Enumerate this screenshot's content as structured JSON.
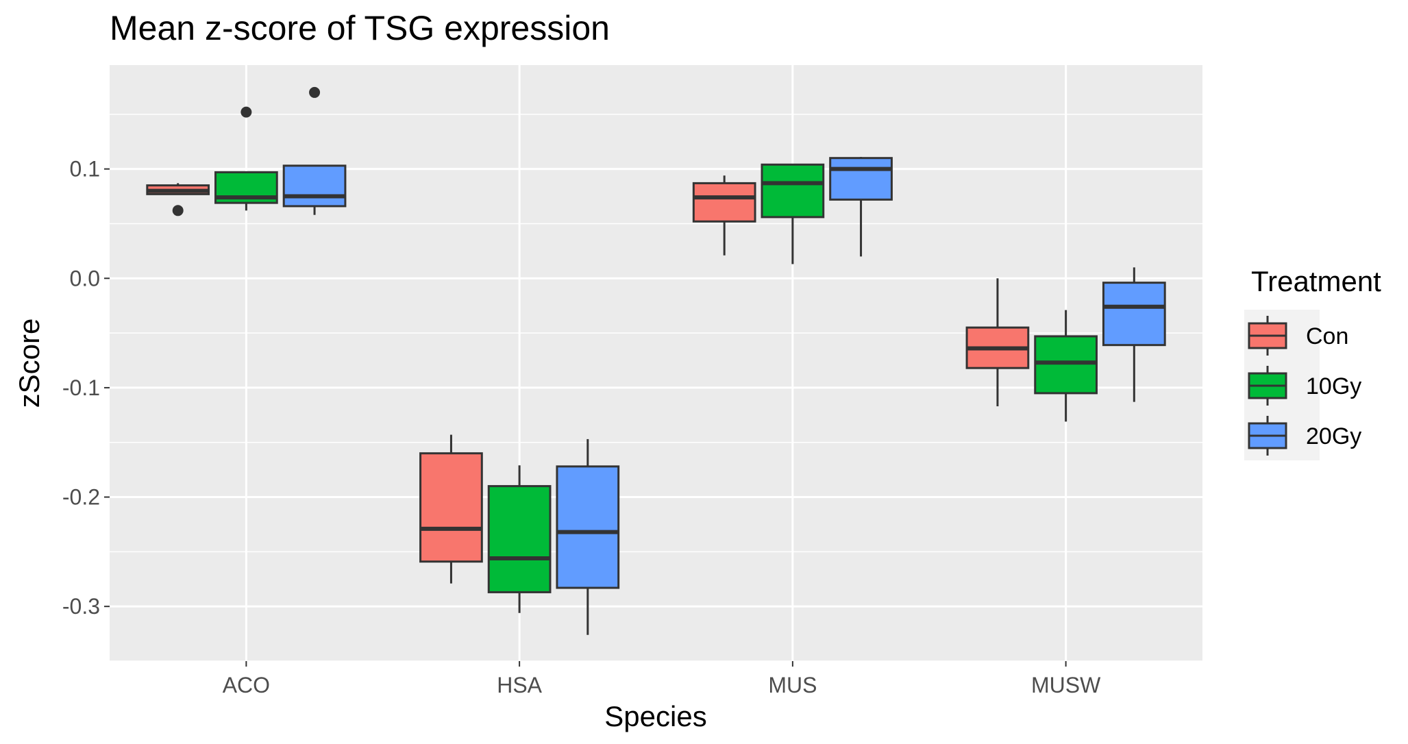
{
  "chart_data": {
    "type": "box",
    "title": "Mean z-score of TSG expression",
    "xlabel": "Species",
    "ylabel": "zScore",
    "categories": [
      "ACO",
      "HSA",
      "MUS",
      "MUSW"
    ],
    "ylim": [
      -0.35,
      0.195
    ],
    "yticks": [
      0.1,
      0.0,
      -0.1,
      -0.2,
      -0.3
    ],
    "ytick_labels": [
      "0.1",
      "0.0",
      "-0.1",
      "-0.2",
      "-0.3"
    ],
    "grid": true,
    "legend": {
      "title": "Treatment",
      "placement": "right",
      "items": [
        "Con",
        "10Gy",
        "20Gy"
      ]
    },
    "series": [
      {
        "name": "Con",
        "color": "#F8766D",
        "boxes": [
          {
            "category": "ACO",
            "lower_whisker": 0.077,
            "q1": 0.077,
            "median": 0.08,
            "q3": 0.085,
            "upper_whisker": 0.087,
            "outliers": [
              0.062
            ]
          },
          {
            "category": "HSA",
            "lower_whisker": -0.279,
            "q1": -0.259,
            "median": -0.229,
            "q3": -0.16,
            "upper_whisker": -0.143,
            "outliers": []
          },
          {
            "category": "MUS",
            "lower_whisker": 0.021,
            "q1": 0.052,
            "median": 0.074,
            "q3": 0.087,
            "upper_whisker": 0.094,
            "outliers": []
          },
          {
            "category": "MUSW",
            "lower_whisker": -0.117,
            "q1": -0.082,
            "median": -0.064,
            "q3": -0.045,
            "upper_whisker": 0.0,
            "outliers": []
          }
        ]
      },
      {
        "name": "10Gy",
        "color": "#00BA38",
        "boxes": [
          {
            "category": "ACO",
            "lower_whisker": 0.062,
            "q1": 0.069,
            "median": 0.074,
            "q3": 0.097,
            "upper_whisker": 0.097,
            "outliers": [
              0.152
            ]
          },
          {
            "category": "HSA",
            "lower_whisker": -0.306,
            "q1": -0.287,
            "median": -0.256,
            "q3": -0.19,
            "upper_whisker": -0.171,
            "outliers": []
          },
          {
            "category": "MUS",
            "lower_whisker": 0.013,
            "q1": 0.056,
            "median": 0.087,
            "q3": 0.104,
            "upper_whisker": 0.104,
            "outliers": []
          },
          {
            "category": "MUSW",
            "lower_whisker": -0.131,
            "q1": -0.105,
            "median": -0.077,
            "q3": -0.053,
            "upper_whisker": -0.029,
            "outliers": []
          }
        ]
      },
      {
        "name": "20Gy",
        "color": "#619CFF",
        "boxes": [
          {
            "category": "ACO",
            "lower_whisker": 0.058,
            "q1": 0.066,
            "median": 0.075,
            "q3": 0.103,
            "upper_whisker": 0.103,
            "outliers": [
              0.17
            ]
          },
          {
            "category": "HSA",
            "lower_whisker": -0.326,
            "q1": -0.283,
            "median": -0.232,
            "q3": -0.172,
            "upper_whisker": -0.147,
            "outliers": []
          },
          {
            "category": "MUS",
            "lower_whisker": 0.02,
            "q1": 0.072,
            "median": 0.1,
            "q3": 0.11,
            "upper_whisker": 0.111,
            "outliers": []
          },
          {
            "category": "MUSW",
            "lower_whisker": -0.113,
            "q1": -0.061,
            "median": -0.026,
            "q3": -0.004,
            "upper_whisker": 0.01,
            "outliers": []
          }
        ]
      }
    ]
  }
}
